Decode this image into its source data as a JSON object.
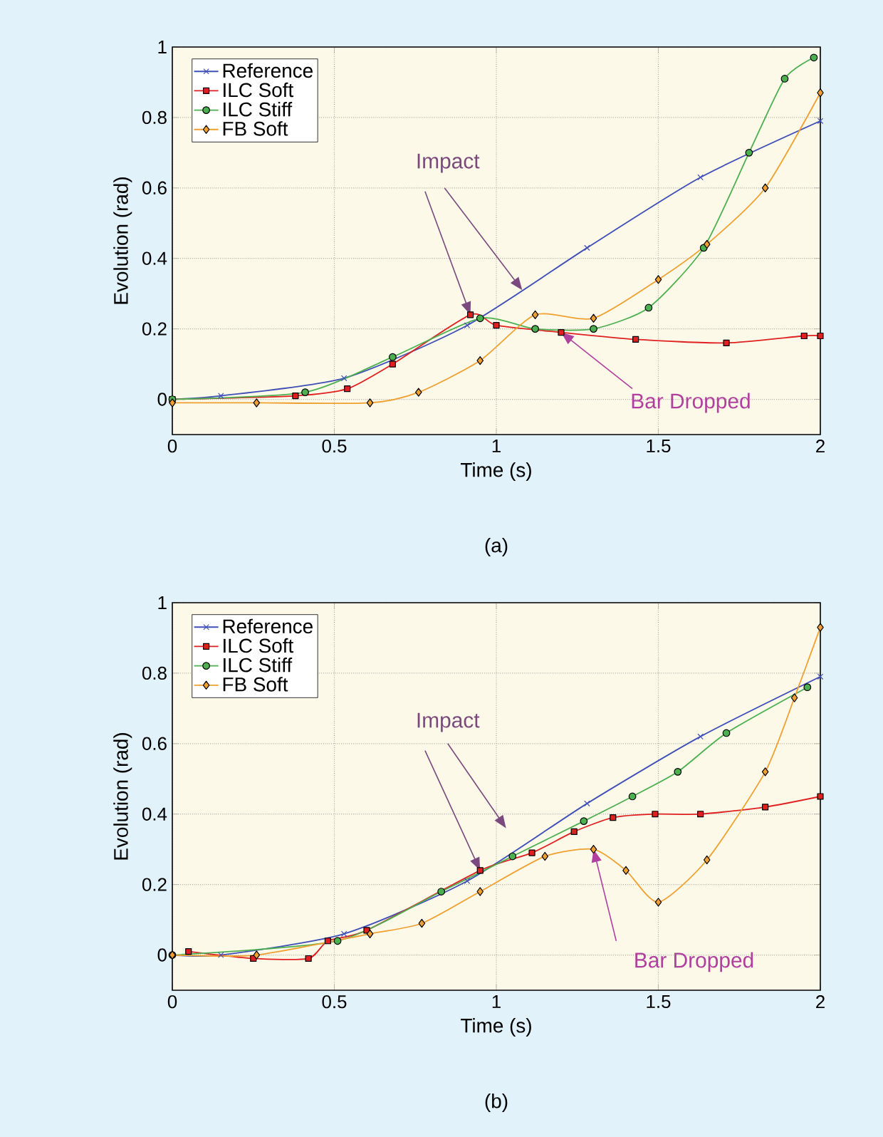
{
  "chart_data": [
    {
      "type": "line",
      "xlabel": "Time (s)",
      "ylabel": "Evolution (rad)",
      "xlim": [
        0,
        2
      ],
      "ylim": [
        -0.1,
        1
      ],
      "xticks": [
        0,
        0.5,
        1,
        1.5,
        2
      ],
      "yticks": [
        0,
        0.2,
        0.4,
        0.6,
        0.8,
        1
      ],
      "grid": true,
      "legend": "top left",
      "annotations": [
        {
          "text": "Impact",
          "x": 0.92,
          "y": 0.24
        },
        {
          "text": "Bar Dropped",
          "x": 1.2,
          "y": 0.19
        },
        "(a)"
      ],
      "series": [
        {
          "name": "Reference",
          "color": "#3f4fb8",
          "marker": "cross",
          "x": [
            0,
            0.15,
            0.53,
            0.91,
            1.28,
            1.63,
            2.0
          ],
          "values": [
            0,
            0.01,
            0.06,
            0.21,
            0.43,
            0.63,
            0.79
          ]
        },
        {
          "name": "ILC Soft",
          "color": "#e02020",
          "marker": "square",
          "x": [
            0,
            0.38,
            0.54,
            0.68,
            0.92,
            1.0,
            1.2,
            1.43,
            1.71,
            1.95,
            2.0
          ],
          "values": [
            0,
            0.01,
            0.03,
            0.1,
            0.24,
            0.21,
            0.19,
            0.17,
            0.16,
            0.18,
            0.18
          ]
        },
        {
          "name": "ILC Stiff",
          "color": "#4caf50",
          "marker": "circle",
          "x": [
            0,
            0.41,
            0.68,
            0.95,
            1.12,
            1.3,
            1.47,
            1.64,
            1.78,
            1.89,
            1.98
          ],
          "values": [
            0,
            0.02,
            0.12,
            0.23,
            0.2,
            0.2,
            0.26,
            0.43,
            0.7,
            0.91,
            0.97
          ]
        },
        {
          "name": "FB Soft",
          "color": "#f0a030",
          "marker": "diamond",
          "x": [
            0,
            0.26,
            0.61,
            0.76,
            0.95,
            1.12,
            1.3,
            1.5,
            1.65,
            1.83,
            2.0
          ],
          "values": [
            -0.01,
            -0.01,
            -0.01,
            0.02,
            0.11,
            0.24,
            0.23,
            0.34,
            0.44,
            0.6,
            0.87
          ]
        }
      ]
    },
    {
      "type": "line",
      "xlabel": "Time (s)",
      "ylabel": "Evolution (rad)",
      "xlim": [
        0,
        2
      ],
      "ylim": [
        -0.1,
        1
      ],
      "xticks": [
        0,
        0.5,
        1,
        1.5,
        2
      ],
      "yticks": [
        0,
        0.2,
        0.4,
        0.6,
        0.8,
        1
      ],
      "grid": true,
      "legend": "top left",
      "annotations": [
        {
          "text": "Impact",
          "x": 0.95,
          "y": 0.24
        },
        {
          "text": "Bar Dropped",
          "x": 1.3,
          "y": 0.3
        },
        "(b)"
      ],
      "series": [
        {
          "name": "Reference",
          "color": "#3f4fb8",
          "marker": "cross",
          "x": [
            0,
            0.15,
            0.53,
            0.91,
            1.28,
            1.63,
            2.0
          ],
          "values": [
            0,
            0.0,
            0.06,
            0.21,
            0.43,
            0.62,
            0.79
          ]
        },
        {
          "name": "ILC Soft",
          "color": "#e02020",
          "marker": "square",
          "x": [
            0.05,
            0.25,
            0.42,
            0.48,
            0.6,
            0.95,
            1.11,
            1.24,
            1.36,
            1.49,
            1.63,
            1.83,
            2.0
          ],
          "values": [
            0.01,
            -0.01,
            -0.01,
            0.04,
            0.07,
            0.24,
            0.29,
            0.35,
            0.39,
            0.4,
            0.4,
            0.42,
            0.45
          ]
        },
        {
          "name": "ILC Stiff",
          "color": "#4caf50",
          "marker": "circle",
          "x": [
            0,
            0.51,
            0.83,
            1.05,
            1.27,
            1.42,
            1.56,
            1.71,
            1.96
          ],
          "values": [
            0,
            0.04,
            0.18,
            0.28,
            0.38,
            0.45,
            0.52,
            0.63,
            0.76
          ]
        },
        {
          "name": "FB Soft",
          "color": "#f0a030",
          "marker": "diamond",
          "x": [
            0,
            0.26,
            0.61,
            0.77,
            0.95,
            1.15,
            1.3,
            1.4,
            1.5,
            1.65,
            1.83,
            1.92,
            2.0
          ],
          "values": [
            0,
            0.0,
            0.06,
            0.09,
            0.18,
            0.28,
            0.3,
            0.24,
            0.15,
            0.27,
            0.52,
            0.73,
            0.93
          ]
        }
      ]
    }
  ]
}
